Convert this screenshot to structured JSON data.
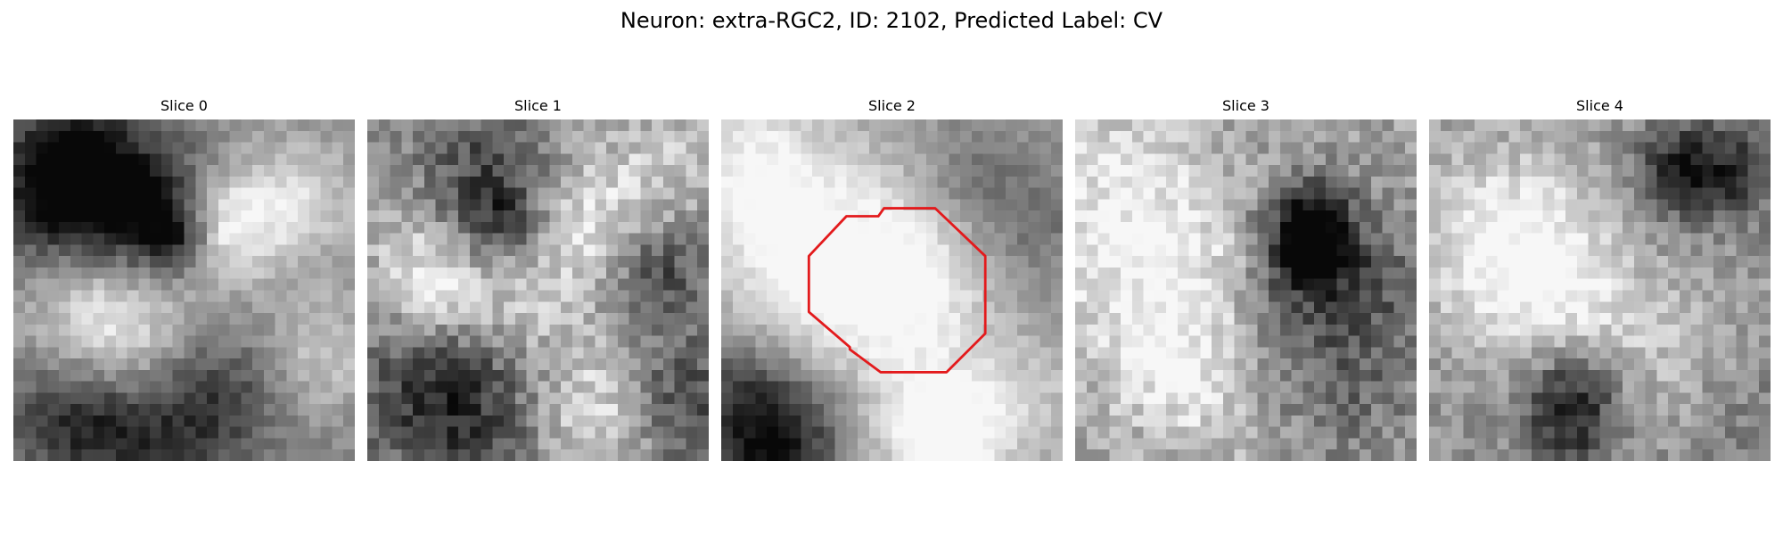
{
  "figure": {
    "title": "Neuron: extra-RGC2, ID: 2102, Predicted Label: CV"
  },
  "panels": [
    {
      "title": "Slice 0"
    },
    {
      "title": "Slice 1"
    },
    {
      "title": "Slice 2",
      "has_outline": true
    },
    {
      "title": "Slice 3"
    },
    {
      "title": "Slice 4"
    }
  ],
  "outline_color": "#e31a1c",
  "colormap": "gray"
}
